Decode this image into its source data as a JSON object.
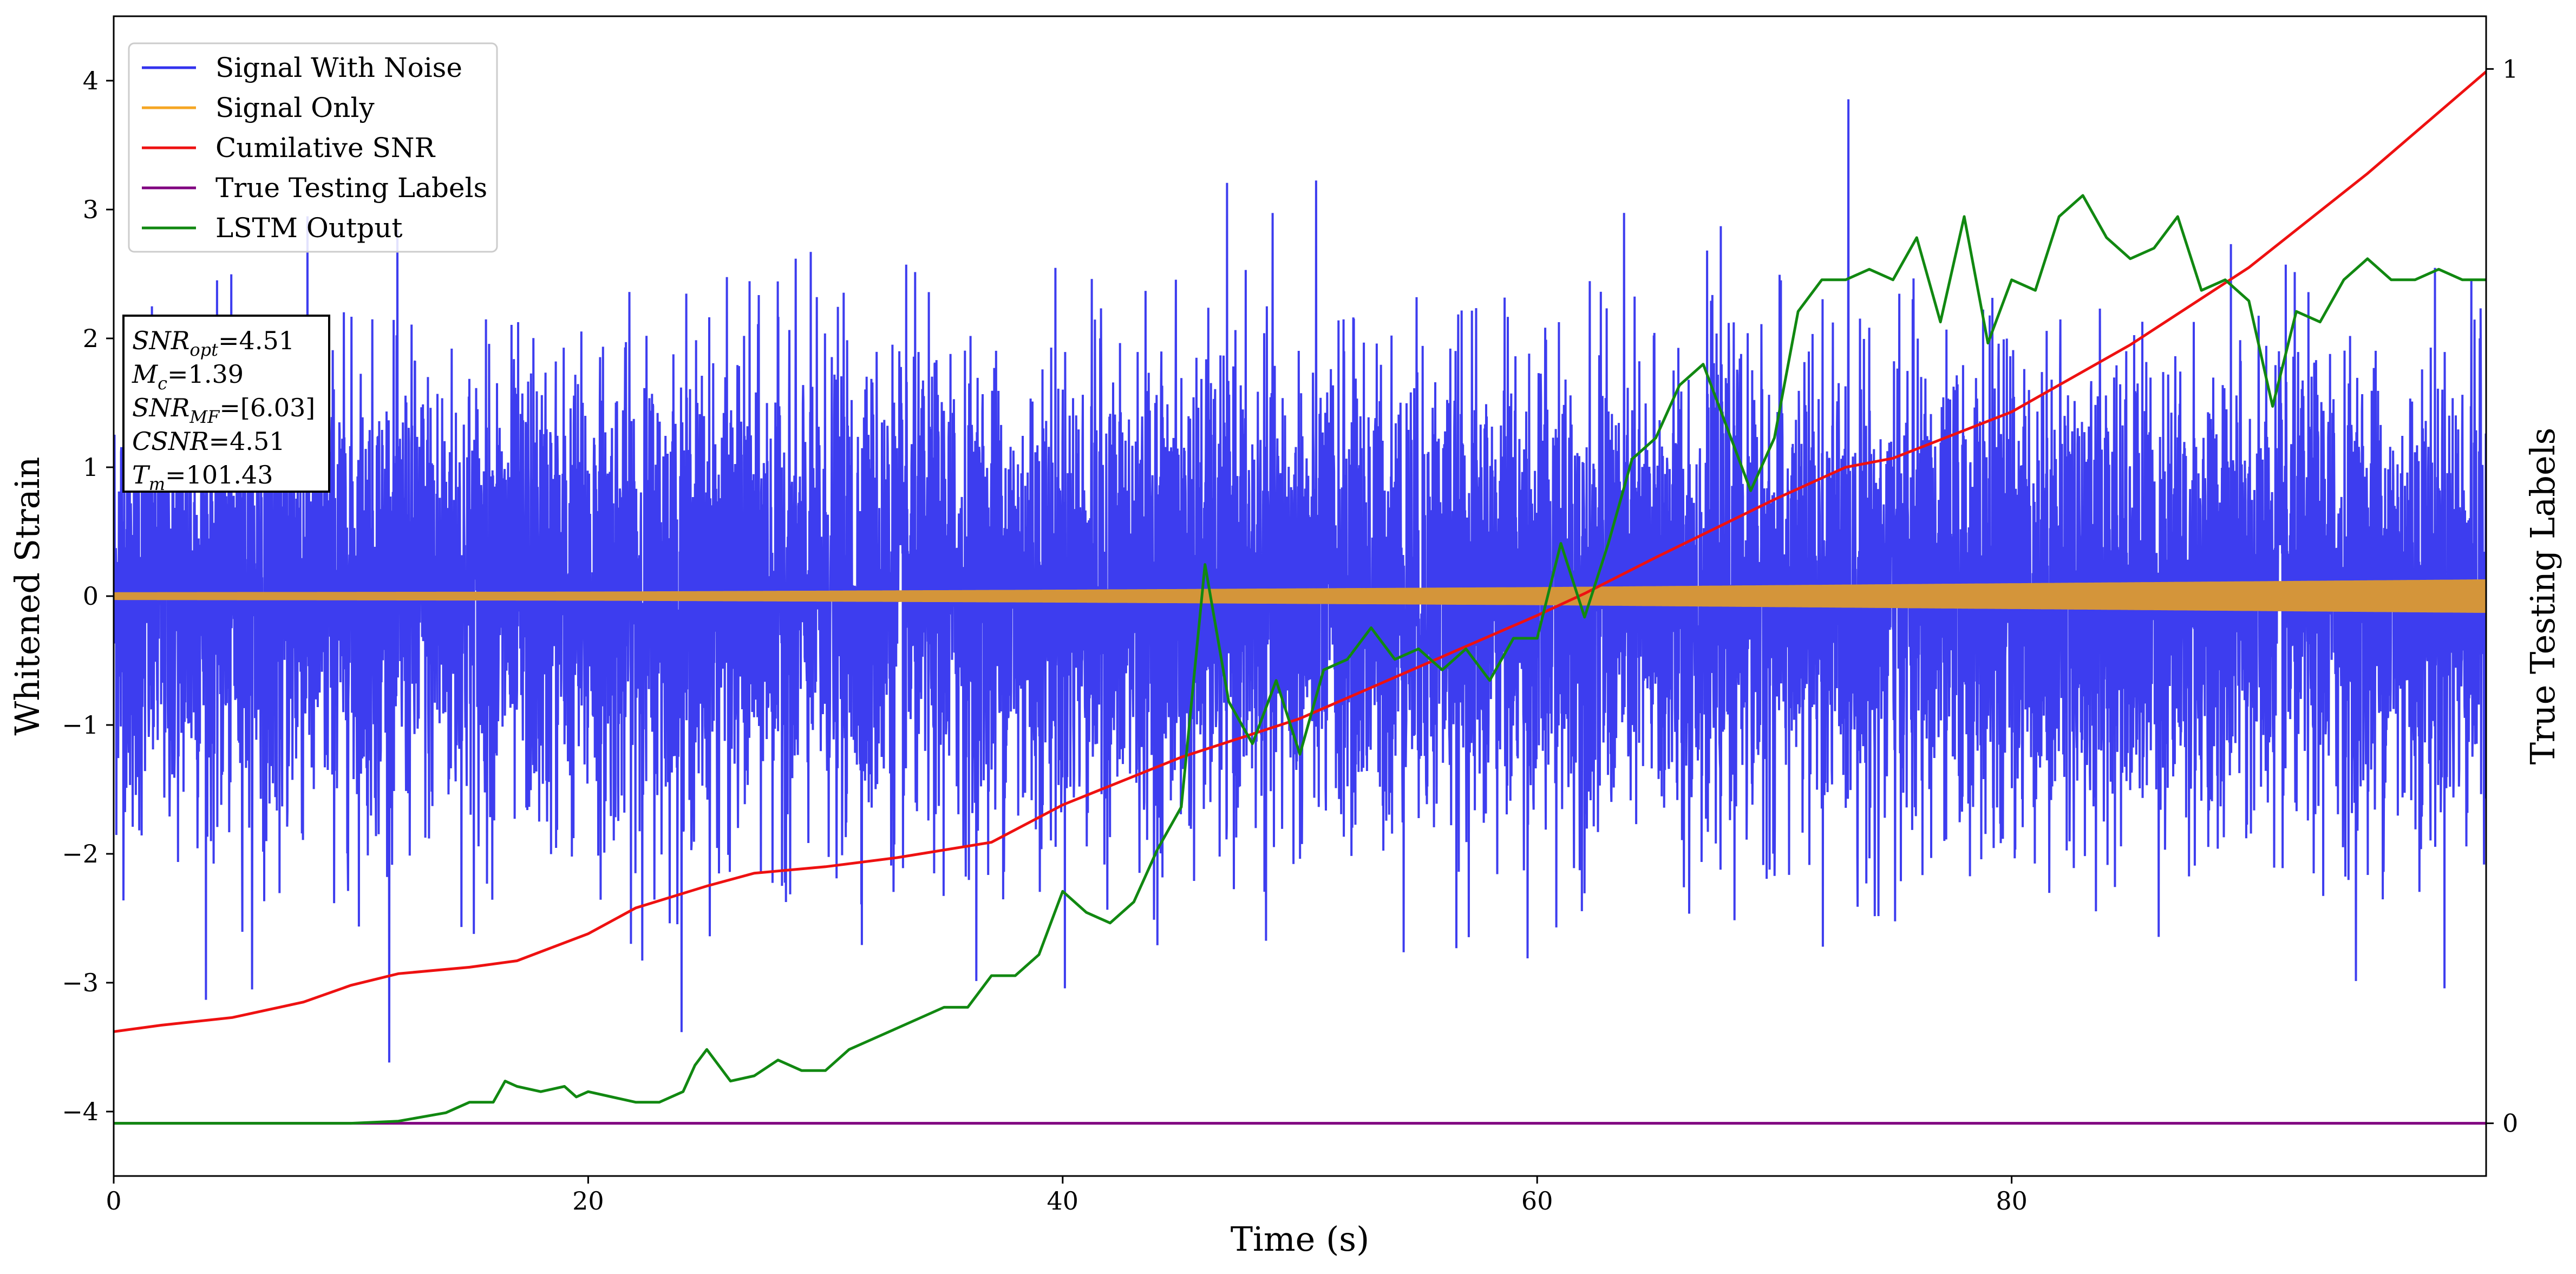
{
  "chart_data": {
    "type": "line",
    "title": "",
    "xlabel": "Time (s)",
    "ylabel": "Whitened Strain",
    "ylabel_right": "True Testing Labels",
    "xlim": [
      0,
      100
    ],
    "ylim": [
      -4.5,
      4.5
    ],
    "ylim_right": [
      -0.05,
      1.05
    ],
    "x_ticks": [
      0,
      20,
      40,
      60,
      80
    ],
    "y_ticks": [
      -4,
      -3,
      -2,
      -1,
      0,
      1,
      2,
      3,
      4
    ],
    "y_ticks_right": [
      0,
      1
    ],
    "grid": false,
    "legend_position": "top-left",
    "legend": [
      {
        "name": "Signal With Noise",
        "color": "#3333ee"
      },
      {
        "name": "Signal Only",
        "color": "#f5a623"
      },
      {
        "name": "Cumilative SNR",
        "color": "#ee1111"
      },
      {
        "name": "True Testing Labels",
        "color": "#800080"
      },
      {
        "name": "LSTM Output",
        "color": "#118811"
      }
    ],
    "annotation": [
      {
        "var": "SNR",
        "sub": "opt",
        "value": "=4.51"
      },
      {
        "var": "M",
        "sub": "c",
        "value": "=1.39"
      },
      {
        "var": "SNR",
        "sub": "MF",
        "value": "=[6.03]"
      },
      {
        "var": "CSNR",
        "sub": "",
        "value": "=4.51"
      },
      {
        "var": "T",
        "sub": "m",
        "value": "=101.43"
      }
    ],
    "series": [
      {
        "name": "Signal With Noise",
        "axis": "left",
        "color": "#3333ee",
        "description": "dense whitened noise, roughly Gaussian, range approx -4.1 to 3.9",
        "approx_std": 0.9,
        "min": -4.1,
        "max": 3.9
      },
      {
        "name": "Signal Only",
        "axis": "left",
        "color": "#d4953a",
        "amplitude_envelope": {
          "x": [
            0,
            20,
            40,
            60,
            80,
            100
          ],
          "amp": [
            0.03,
            0.035,
            0.05,
            0.07,
            0.1,
            0.13
          ]
        }
      },
      {
        "name": "Cumilative SNR",
        "axis": "left",
        "color": "#ee1111",
        "x": [
          0,
          2,
          5,
          8,
          10,
          12,
          15,
          17,
          20,
          22,
          25,
          27,
          30,
          33,
          35,
          37,
          40,
          45,
          50,
          55,
          60,
          62,
          65,
          70,
          73,
          75,
          80,
          85,
          90,
          95,
          100
        ],
        "y": [
          -3.38,
          -3.33,
          -3.27,
          -3.15,
          -3.02,
          -2.93,
          -2.88,
          -2.83,
          -2.62,
          -2.42,
          -2.25,
          -2.15,
          -2.1,
          -2.03,
          -1.97,
          -1.91,
          -1.62,
          -1.25,
          -0.95,
          -0.55,
          -0.15,
          0.02,
          0.3,
          0.75,
          1.0,
          1.07,
          1.43,
          1.95,
          2.55,
          3.28,
          4.07
        ]
      },
      {
        "name": "True Testing Labels",
        "axis": "right",
        "color": "#800080",
        "x": [
          0,
          100
        ],
        "y": [
          0,
          0
        ]
      },
      {
        "name": "LSTM Output",
        "axis": "right",
        "color": "#118811",
        "x": [
          0,
          10,
          12,
          14,
          15,
          16,
          16.5,
          17,
          18,
          19,
          19.5,
          20,
          21,
          22,
          23,
          24,
          24.5,
          25,
          26,
          27,
          28,
          29,
          30,
          31,
          32,
          33,
          34,
          35,
          36,
          37,
          38,
          39,
          40,
          41,
          42,
          43,
          44,
          45,
          46,
          47,
          48,
          49,
          50,
          51,
          52,
          53,
          54,
          55,
          56,
          57,
          58,
          59,
          60,
          61,
          62,
          63,
          64,
          65,
          66,
          67,
          68,
          69,
          70,
          71,
          72,
          73,
          74,
          75,
          76,
          77,
          78,
          79,
          80,
          81,
          82,
          83,
          84,
          85,
          86,
          87,
          88,
          89,
          90,
          91,
          92,
          93,
          94,
          95,
          96,
          97,
          98,
          99,
          100
        ],
        "y": [
          0,
          0,
          0.002,
          0.01,
          0.02,
          0.02,
          0.04,
          0.035,
          0.03,
          0.035,
          0.025,
          0.03,
          0.025,
          0.02,
          0.02,
          0.03,
          0.055,
          0.07,
          0.04,
          0.045,
          0.06,
          0.05,
          0.05,
          0.07,
          0.08,
          0.09,
          0.1,
          0.11,
          0.11,
          0.14,
          0.14,
          0.16,
          0.22,
          0.2,
          0.19,
          0.21,
          0.26,
          0.3,
          0.53,
          0.4,
          0.36,
          0.42,
          0.35,
          0.43,
          0.44,
          0.47,
          0.44,
          0.45,
          0.43,
          0.45,
          0.42,
          0.46,
          0.46,
          0.55,
          0.48,
          0.55,
          0.63,
          0.65,
          0.7,
          0.72,
          0.66,
          0.6,
          0.65,
          0.77,
          0.8,
          0.8,
          0.81,
          0.8,
          0.84,
          0.76,
          0.86,
          0.74,
          0.8,
          0.79,
          0.86,
          0.88,
          0.84,
          0.82,
          0.83,
          0.86,
          0.79,
          0.8,
          0.78,
          0.68,
          0.77,
          0.76,
          0.8,
          0.82,
          0.8,
          0.8,
          0.81,
          0.8,
          0.8
        ]
      }
    ]
  }
}
